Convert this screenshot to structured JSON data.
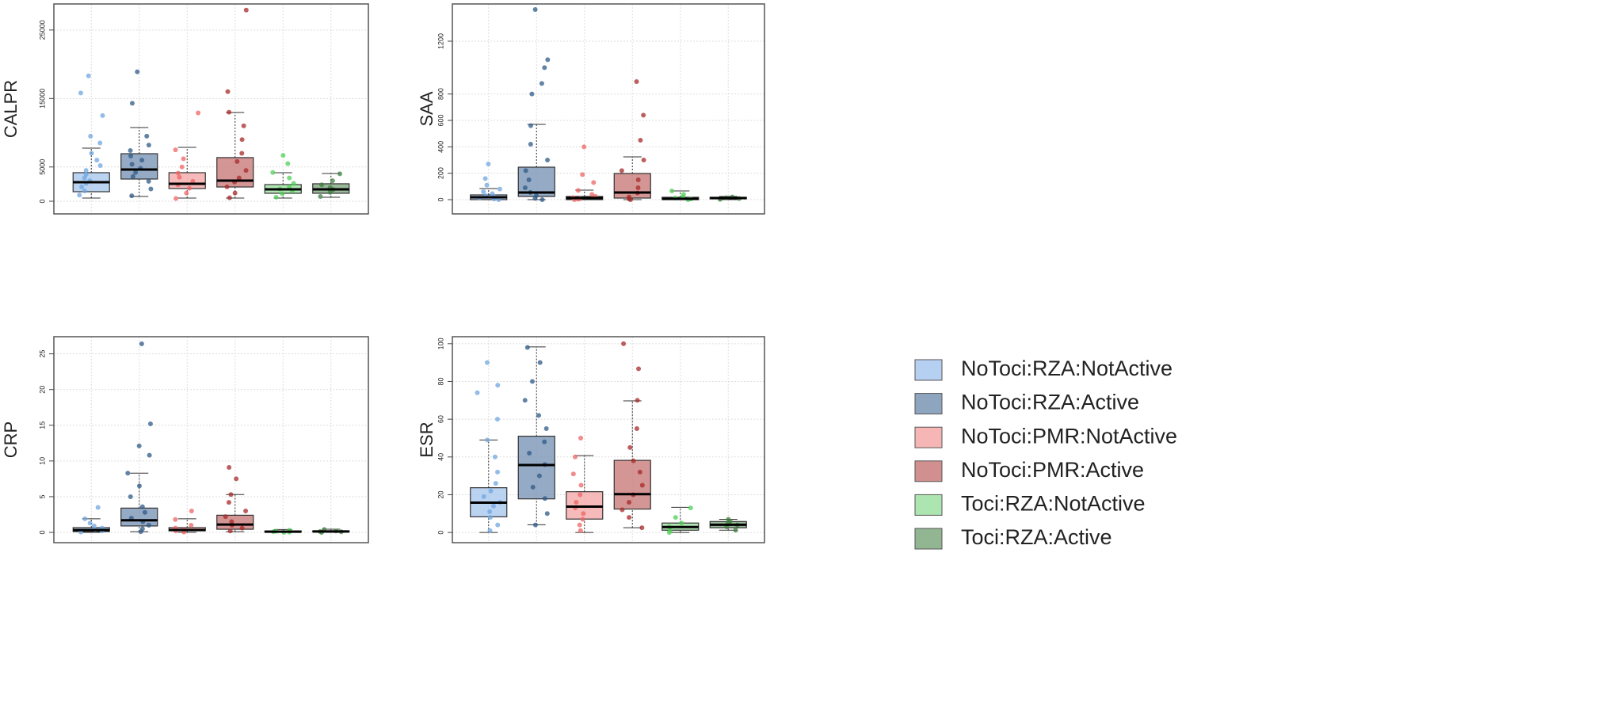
{
  "chart_data": [
    {
      "type": "box",
      "y_label": "CALPR",
      "ylim": [
        -1850,
        28800
      ],
      "yticks": [
        0,
        5000,
        15000,
        25000
      ],
      "grid": true,
      "boxes": [
        {
          "whisker_low": 460,
          "q1": 1390,
          "median": 2780,
          "q3": 4170,
          "whisker_high": 7750,
          "points": [
            900,
            1500,
            2100,
            2600,
            3000,
            3400,
            3900,
            4500,
            5200,
            6000,
            7000,
            8500,
            9500,
            12500,
            15800,
            18300
          ]
        },
        {
          "whisker_low": 690,
          "q1": 3240,
          "median": 4630,
          "q3": 6940,
          "whisker_high": 10760,
          "points": [
            800,
            1800,
            2900,
            3600,
            4200,
            4800,
            5400,
            6000,
            6600,
            7400,
            8200,
            9500,
            14300,
            18900
          ]
        },
        {
          "whisker_low": 460,
          "q1": 1850,
          "median": 2550,
          "q3": 4170,
          "whisker_high": 7870,
          "points": [
            400,
            1200,
            1900,
            2400,
            2900,
            3500,
            4100,
            5000,
            6200,
            7500,
            12900
          ]
        },
        {
          "whisker_low": 460,
          "q1": 2080,
          "median": 3010,
          "q3": 6370,
          "whisker_high": 12960,
          "points": [
            500,
            1200,
            2100,
            2800,
            3400,
            4500,
            5800,
            7000,
            9000,
            11000,
            13000,
            16000,
            27900
          ]
        },
        {
          "whisker_low": 460,
          "q1": 1160,
          "median": 1740,
          "q3": 2430,
          "whisker_high": 4170,
          "points": [
            600,
            1100,
            1500,
            1800,
            2100,
            2600,
            3400,
            4200,
            5500,
            6700
          ]
        },
        {
          "whisker_low": 580,
          "q1": 1160,
          "median": 1740,
          "q3": 2550,
          "whisker_high": 4050,
          "points": [
            700,
            1300,
            1700,
            2000,
            2400,
            3000,
            4000
          ]
        }
      ]
    },
    {
      "type": "box",
      "y_label": "SAA",
      "ylim": [
        -108,
        1482
      ],
      "yticks": [
        0,
        200,
        400,
        600,
        800,
        1200
      ],
      "grid": true,
      "boxes": [
        {
          "whisker_low": 0,
          "q1": 0,
          "median": 18,
          "q3": 36,
          "whisker_high": 84,
          "points": [
            0,
            5,
            12,
            20,
            30,
            45,
            60,
            80,
            110,
            160,
            270
          ]
        },
        {
          "whisker_low": 0,
          "q1": 24,
          "median": 54,
          "q3": 246,
          "whisker_high": 570,
          "points": [
            0,
            10,
            30,
            55,
            90,
            150,
            220,
            300,
            420,
            560,
            800,
            880,
            1000,
            1060,
            1440
          ]
        },
        {
          "whisker_low": 0,
          "q1": 0,
          "median": 12,
          "q3": 24,
          "whisker_high": 72,
          "points": [
            0,
            3,
            8,
            15,
            25,
            40,
            70,
            130,
            190,
            400
          ]
        },
        {
          "whisker_low": 0,
          "q1": 12,
          "median": 54,
          "q3": 198,
          "whisker_high": 324,
          "points": [
            0,
            5,
            20,
            50,
            90,
            150,
            220,
            300,
            450,
            640,
            894
          ]
        },
        {
          "whisker_low": 0,
          "q1": 0,
          "median": 6,
          "q3": 18,
          "whisker_high": 66,
          "points": [
            0,
            5,
            12,
            20,
            40,
            66
          ]
        },
        {
          "whisker_low": 0,
          "q1": 6,
          "median": 12,
          "q3": 18,
          "whisker_high": 24,
          "points": [
            2,
            8,
            14,
            20
          ]
        }
      ]
    },
    {
      "type": "box",
      "y_label": "CRP",
      "ylim": [
        -1.44,
        27.4
      ],
      "yticks": [
        0,
        5,
        10,
        15,
        20,
        25
      ],
      "grid": true,
      "boxes": [
        {
          "whisker_low": 0,
          "q1": 0.11,
          "median": 0.33,
          "q3": 0.67,
          "whisker_high": 1.9,
          "points": [
            0.05,
            0.2,
            0.4,
            0.6,
            0.9,
            1.3,
            1.9,
            3.5
          ]
        },
        {
          "whisker_low": 0.1,
          "q1": 0.9,
          "median": 1.7,
          "q3": 3.4,
          "whisker_high": 8.3,
          "points": [
            0.1,
            0.5,
            1,
            1.5,
            2,
            2.8,
            3.6,
            5,
            6.5,
            8.3,
            10.8,
            12.1,
            15.2,
            26.4
          ]
        },
        {
          "whisker_low": 0,
          "q1": 0.22,
          "median": 0.33,
          "q3": 0.67,
          "whisker_high": 1.9,
          "points": [
            0.05,
            0.2,
            0.35,
            0.6,
            1,
            1.8,
            3
          ]
        },
        {
          "whisker_low": 0.1,
          "q1": 0.44,
          "median": 1.1,
          "q3": 2.4,
          "whisker_high": 5.3,
          "points": [
            0.2,
            0.6,
            1,
            1.5,
            2.2,
            3,
            4.2,
            5.3,
            7.5,
            9.1
          ]
        },
        {
          "whisker_low": 0,
          "q1": 0.05,
          "median": 0.1,
          "q3": 0.2,
          "whisker_high": 0.4,
          "points": [
            0,
            0.05,
            0.1,
            0.15,
            0.3
          ]
        },
        {
          "whisker_low": 0,
          "q1": 0.05,
          "median": 0.12,
          "q3": 0.22,
          "whisker_high": 0.45,
          "points": [
            0,
            0.08,
            0.12,
            0.2,
            0.4
          ]
        }
      ]
    },
    {
      "type": "box",
      "y_label": "ESR",
      "ylim": [
        -5.4,
        103.7
      ],
      "yticks": [
        0,
        20,
        40,
        60,
        80,
        100
      ],
      "grid": true,
      "boxes": [
        {
          "whisker_low": 0,
          "q1": 8.3,
          "median": 15.8,
          "q3": 23.7,
          "whisker_high": 49,
          "points": [
            1,
            4,
            8,
            11,
            14,
            16,
            19,
            22,
            26,
            32,
            40,
            49,
            60,
            74,
            78,
            90
          ]
        },
        {
          "whisker_low": 4.1,
          "q1": 17.8,
          "median": 35.7,
          "q3": 51,
          "whisker_high": 98.3,
          "points": [
            4,
            10,
            18,
            24,
            30,
            36,
            42,
            48,
            55,
            62,
            70,
            80,
            90,
            98
          ]
        },
        {
          "whisker_low": 0,
          "q1": 7.1,
          "median": 13.7,
          "q3": 21.6,
          "whisker_high": 40.7,
          "points": [
            1,
            4,
            7,
            10,
            13,
            16,
            20,
            25,
            31,
            40,
            50
          ]
        },
        {
          "whisker_low": 2.5,
          "q1": 12.4,
          "median": 20.3,
          "q3": 38.2,
          "whisker_high": 69.7,
          "points": [
            2.5,
            8,
            12,
            16,
            20,
            25,
            32,
            38,
            45,
            55,
            70,
            86.7,
            100
          ]
        },
        {
          "whisker_low": 0,
          "q1": 1.2,
          "median": 2.9,
          "q3": 5,
          "whisker_high": 13.3,
          "points": [
            0,
            1,
            3,
            5,
            8,
            13
          ]
        },
        {
          "whisker_low": 1.2,
          "q1": 2.5,
          "median": 4.1,
          "q3": 5.8,
          "whisker_high": 7,
          "points": [
            1.2,
            3,
            4,
            5,
            6,
            7
          ]
        }
      ]
    }
  ],
  "legend": {
    "series": [
      {
        "name": "NoToci:RZA:NotActive",
        "color": "#a9c8ee",
        "point_color": "#6fa6e0"
      },
      {
        "name": "NoToci:RZA:Active",
        "color": "#7a95b5",
        "point_color": "#2f5a87"
      },
      {
        "name": "NoToci:PMR:NotActive",
        "color": "#f4a9a9",
        "point_color": "#ee6464"
      },
      {
        "name": "NoToci:PMR:Active",
        "color": "#c97b7b",
        "point_color": "#a82a2a"
      },
      {
        "name": "Toci:RZA:NotActive",
        "color": "#9fe0a2",
        "point_color": "#4fcf55"
      },
      {
        "name": "Toci:RZA:Active",
        "color": "#7fa87f",
        "point_color": "#3f7f3f"
      }
    ]
  }
}
